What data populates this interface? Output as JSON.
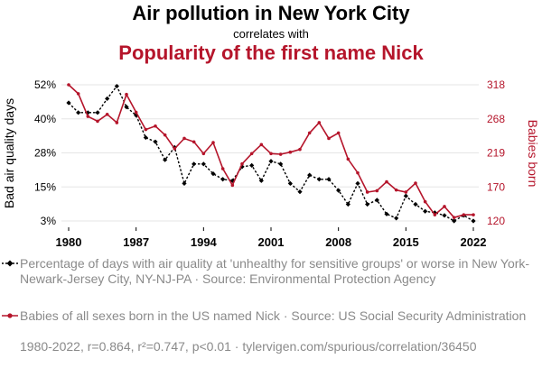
{
  "title": "Air pollution in New York City",
  "subtitle": "correlates with",
  "title2": "Popularity of the first name Nick",
  "legend": [
    "Percentage of days with air quality at 'unhealthy for sensitive groups' or worse in New York-Newark-Jersey City, NY-NJ-PA · Source: Environmental Protection Agency",
    "Babies of all sexes born in the US named Nick · Source: US Social Security Administration"
  ],
  "footer": "1980-2022, r=0.864, r²=0.747, p<0.01 · tylervigen.com/spurious/correlation/36450",
  "colors": {
    "series1": "#000000",
    "series2": "#b5152b",
    "grid": "#e5e5e5"
  },
  "chart_data": {
    "type": "line",
    "x": [
      1980,
      1981,
      1982,
      1983,
      1984,
      1985,
      1986,
      1987,
      1988,
      1989,
      1990,
      1991,
      1992,
      1993,
      1994,
      1995,
      1996,
      1997,
      1998,
      1999,
      2000,
      2001,
      2002,
      2003,
      2004,
      2005,
      2006,
      2007,
      2008,
      2009,
      2010,
      2011,
      2012,
      2013,
      2014,
      2015,
      2016,
      2017,
      2018,
      2019,
      2020,
      2021,
      2022
    ],
    "xticks": [
      1980,
      1987,
      1994,
      2001,
      2008,
      2015,
      2022
    ],
    "series": [
      {
        "name": "Percentage of days with air quality at 'unhealthy for sensitive groups' or worse in New York-Newark-Jersey City, NY-NJ-PA",
        "axis": "left",
        "color": "#000000",
        "marker": "diamond",
        "dash": true,
        "values": [
          45.5,
          42.0,
          42.0,
          42.0,
          47.0,
          51.5,
          44.0,
          41.0,
          33.0,
          31.5,
          25.0,
          29.5,
          16.5,
          23.5,
          23.5,
          20.0,
          18.0,
          17.5,
          22.5,
          23.0,
          17.5,
          24.5,
          23.5,
          16.5,
          13.5,
          19.5,
          18.0,
          18.0,
          14.0,
          9.0,
          16.5,
          9.0,
          10.5,
          5.5,
          4.0,
          12.0,
          9.0,
          6.5,
          6.0,
          5.0,
          3.0,
          5.0,
          3.0
        ]
      },
      {
        "name": "Babies of all sexes born in the US named Nick",
        "axis": "right",
        "color": "#b5152b",
        "marker": "circle",
        "dash": false,
        "values": [
          318,
          305,
          272,
          265,
          275,
          263,
          304,
          278,
          253,
          258,
          245,
          225,
          240,
          235,
          218,
          234,
          196,
          172,
          203,
          218,
          231,
          218,
          217,
          220,
          224,
          248,
          263,
          240,
          248,
          210,
          190,
          162,
          164,
          177,
          165,
          162,
          175,
          148,
          129,
          141,
          125,
          129,
          129
        ]
      }
    ],
    "ylabel_left": "Bad air quality days",
    "ylabel_right": "Babies born",
    "left_ticks": [
      "3%",
      "15%",
      "28%",
      "40%",
      "52%"
    ],
    "left_ylim": [
      3,
      52
    ],
    "right_ticks": [
      "120",
      "170",
      "219",
      "268",
      "318"
    ],
    "right_ylim": [
      120,
      318
    ],
    "grid": true
  }
}
